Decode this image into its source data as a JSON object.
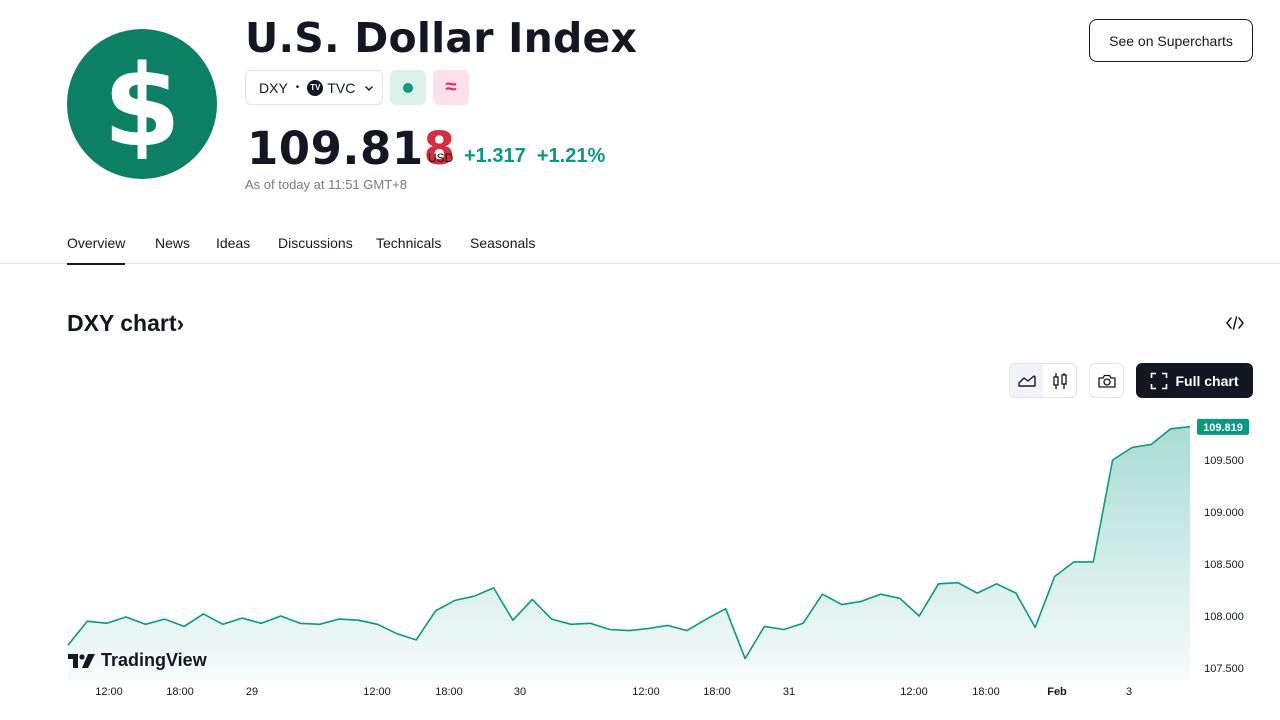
{
  "header": {
    "title": "U.S. Dollar Index",
    "logo_glyph": "$",
    "logo_color": "#0b8064",
    "symbol": "DXY",
    "exchange": "TVC",
    "exchange_badge": "TV",
    "status_icon": "market-open-dot-icon",
    "delay_icon": "approx-icon",
    "delay_glyph": "≈"
  },
  "quote": {
    "price_main": "109.81",
    "price_last_digit": "8",
    "currency": "USD",
    "change": "+1.317",
    "change_pct": "+1.21%",
    "as_of": "As of today at 11:51 GMT+8",
    "up_color": "#089981",
    "down_digit_color": "#d32f3f"
  },
  "actions": {
    "supercharts_label": "See on Supercharts",
    "full_chart_label": "Full chart"
  },
  "tabs": [
    {
      "label": "Overview",
      "active": true
    },
    {
      "label": "News"
    },
    {
      "label": "Ideas"
    },
    {
      "label": "Discussions"
    },
    {
      "label": "Technicals"
    },
    {
      "label": "Seasonals"
    }
  ],
  "chart_section": {
    "heading": "DXY chart",
    "heading_chevron": "›",
    "brand": "TradingView"
  },
  "chart_data": {
    "type": "area",
    "series": [
      {
        "values": [
          107.72,
          107.95,
          107.93,
          107.99,
          107.92,
          107.97,
          107.9,
          108.02,
          107.92,
          107.98,
          107.93,
          108.0,
          107.93,
          107.92,
          107.97,
          107.96,
          107.92,
          107.83,
          107.77,
          108.05,
          108.15,
          108.19,
          108.27,
          107.96,
          108.16,
          107.97,
          107.92,
          107.93,
          107.87,
          107.86,
          107.88,
          107.91,
          107.86,
          107.97,
          108.07,
          107.59,
          107.9,
          107.87,
          107.93,
          108.21,
          108.11,
          108.14,
          108.21,
          108.17,
          108.0,
          108.31,
          108.32,
          108.22,
          108.31,
          108.22,
          107.89,
          108.38,
          108.52,
          108.52,
          109.5,
          109.62,
          109.65,
          109.8,
          109.82
        ],
        "last_value": "109.819"
      }
    ],
    "x_ticks": [
      "12:00",
      "18:00",
      "29",
      "12:00",
      "18:00",
      "30",
      "12:00",
      "18:00",
      "31",
      "12:00",
      "18:00",
      "Feb",
      "3"
    ],
    "y_ticks": [
      "109.500",
      "109.000",
      "108.500",
      "108.000",
      "107.500"
    ],
    "ylim": [
      107.5,
      109.85
    ],
    "grid": false,
    "line_color": "#089981"
  }
}
